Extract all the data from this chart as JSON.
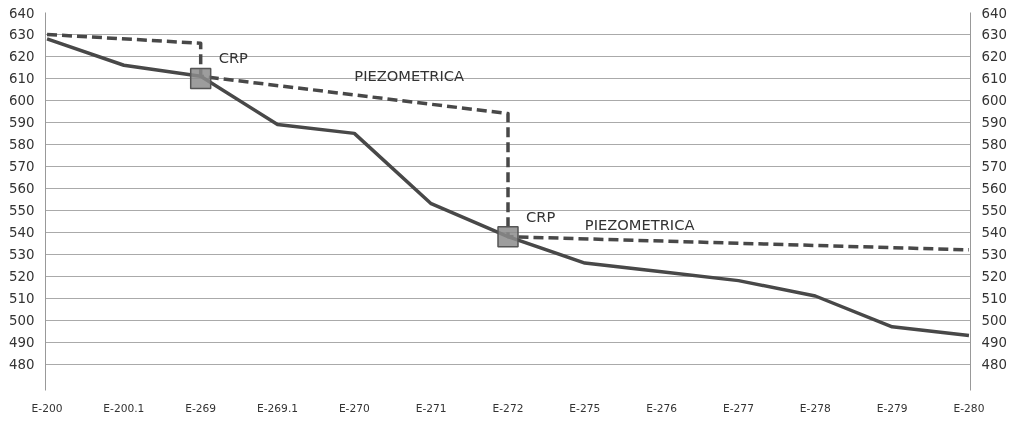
{
  "chart_data": {
    "type": "line",
    "categories": [
      "E-200",
      "E-200.1",
      "E-269",
      "E-269.1",
      "E-270",
      "E-271",
      "E-272",
      "E-275",
      "E-276",
      "E-277",
      "E-278",
      "E-279",
      "E-280"
    ],
    "ylim": [
      468,
      640
    ],
    "yticks": [
      480,
      490,
      500,
      510,
      520,
      530,
      540,
      550,
      560,
      570,
      580,
      590,
      600,
      610,
      620,
      630,
      640
    ],
    "y2lim": [
      468,
      640
    ],
    "y2ticks": [
      480,
      490,
      500,
      510,
      520,
      530,
      540,
      550,
      560,
      570,
      580,
      590,
      600,
      610,
      620,
      630,
      640
    ],
    "grid": "y",
    "series": [
      {
        "color": "#484848",
        "line_style": "solid",
        "values": [
          628,
          616,
          611,
          589,
          585,
          553,
          538,
          526,
          522,
          518,
          511,
          497,
          493
        ]
      },
      {
        "color": "#484848",
        "line_style": "dashed",
        "x": [
          "E-200",
          "E-269",
          "E-269",
          "E-272",
          "E-272",
          "E-280"
        ],
        "values": [
          630,
          626,
          611,
          594,
          538,
          532
        ]
      },
      {
        "type": "scatter",
        "color": "#8c8c8c",
        "marker": "square",
        "values": [
          null,
          null,
          610,
          null,
          null,
          null,
          538,
          null,
          null,
          null,
          null,
          null,
          null
        ]
      }
    ],
    "annotations": [
      {
        "text": "CRP",
        "x": "E-269",
        "y": 610
      },
      {
        "text": "PIEZOMETRICA",
        "x": "E-270",
        "y": 604
      },
      {
        "text": "CRP",
        "x": "E-272",
        "y": 538
      },
      {
        "text": "PIEZOMETRICA",
        "x": "E-275",
        "y": 536
      }
    ]
  }
}
